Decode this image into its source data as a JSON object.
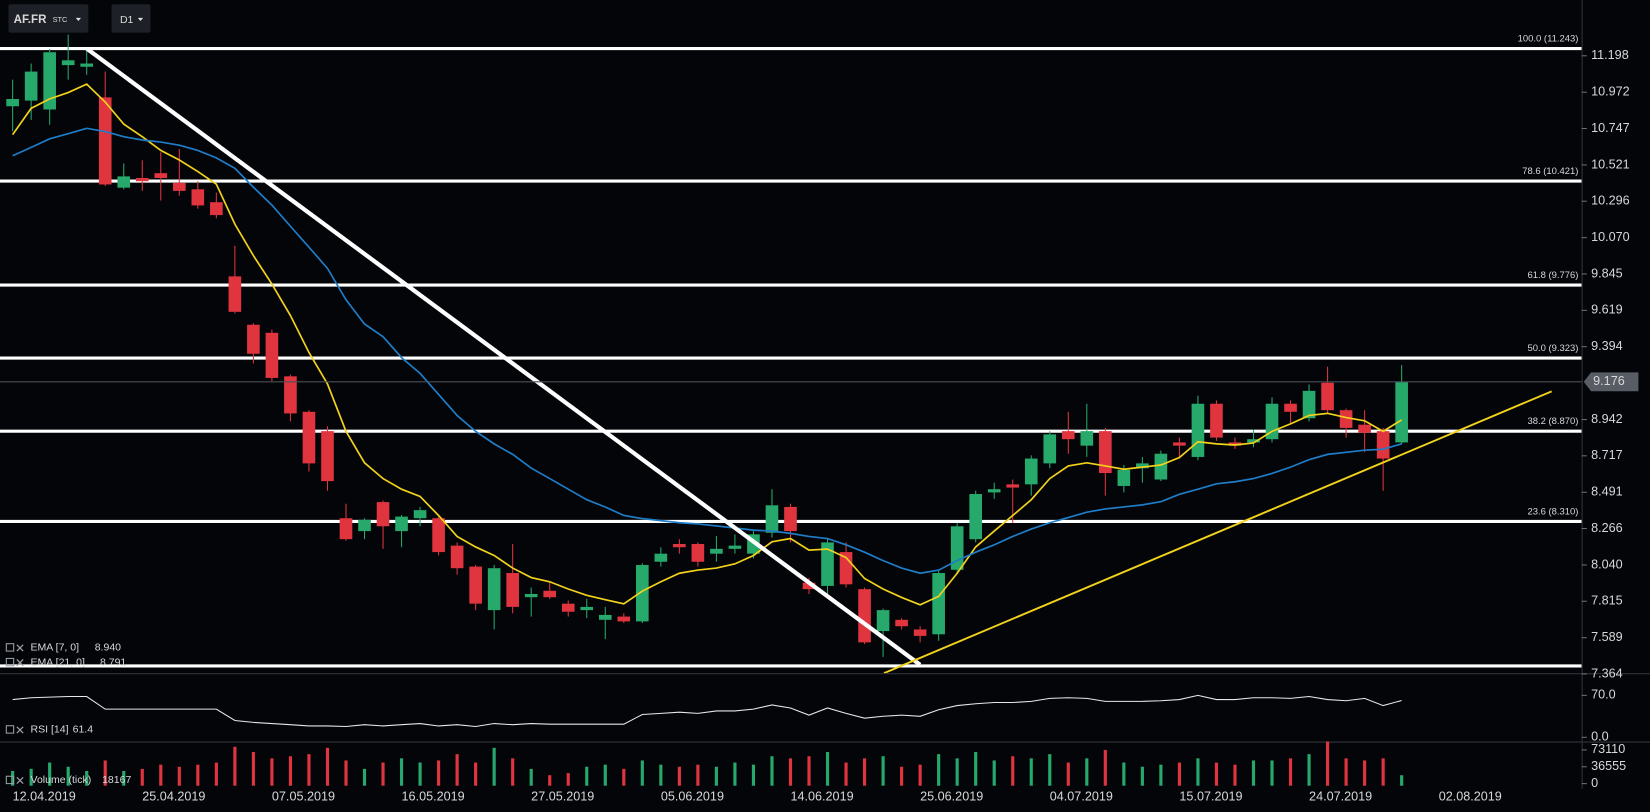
{
  "header": {
    "symbol": "AF.FR",
    "instrument_type": "STC",
    "timeframe": "D1"
  },
  "chart_data": {
    "type": "candlestick",
    "categories": [
      "12.04.2019",
      null,
      null,
      null,
      null,
      null,
      null,
      "25.04.2019",
      null,
      null,
      null,
      null,
      null,
      null,
      "07.05.2019",
      null,
      null,
      null,
      null,
      null,
      null,
      "16.05.2019",
      null,
      null,
      null,
      null,
      null,
      null,
      "27.05.2019",
      null,
      null,
      null,
      null,
      null,
      null,
      "05.06.2019",
      null,
      null,
      null,
      null,
      null,
      null,
      "14.06.2019",
      null,
      null,
      null,
      null,
      null,
      null,
      "25.06.2019",
      null,
      null,
      null,
      null,
      null,
      null,
      "04.07.2019",
      null,
      null,
      null,
      null,
      null,
      null,
      "15.07.2019",
      null,
      null,
      null,
      null,
      null,
      null,
      "24.07.2019",
      null,
      null,
      null,
      null,
      null,
      null,
      "02.08.2019"
    ],
    "open": [
      10.885,
      10.92,
      10.865,
      11.14,
      11.13,
      10.94,
      10.38,
      10.44,
      10.47,
      10.41,
      10.37,
      10.29,
      9.83,
      9.53,
      9.48,
      9.21,
      8.99,
      8.87,
      8.33,
      8.25,
      8.43,
      8.25,
      8.33,
      8.33,
      8.16,
      8.03,
      7.76,
      7.99,
      7.84,
      7.88,
      7.8,
      7.76,
      7.7,
      7.72,
      7.69,
      8.06,
      8.17,
      8.17,
      8.11,
      8.14,
      8.11,
      8.24,
      8.4,
      7.93,
      7.91,
      8.12,
      7.89,
      7.63,
      7.7,
      7.64,
      7.61,
      8.01,
      8.2,
      8.49,
      8.54,
      8.54,
      8.67,
      8.87,
      8.78,
      8.87,
      8.53,
      8.64,
      8.57,
      8.8,
      8.71,
      9.04,
      8.8,
      8.8,
      8.82,
      9.04,
      8.95,
      9.17,
      9.0,
      8.91,
      8.87,
      8.8,
      null,
      null
    ],
    "high": [
      11.05,
      11.15,
      11.24,
      11.33,
      11.24,
      11.1,
      10.53,
      10.55,
      10.6,
      10.62,
      10.42,
      10.35,
      10.02,
      9.54,
      9.5,
      9.22,
      9.0,
      8.9,
      8.42,
      8.33,
      8.44,
      8.35,
      8.4,
      8.34,
      8.18,
      8.04,
      8.04,
      8.17,
      7.9,
      7.93,
      7.82,
      7.83,
      7.78,
      7.74,
      8.05,
      8.15,
      8.2,
      8.18,
      8.22,
      8.23,
      8.26,
      8.51,
      8.42,
      7.96,
      8.2,
      8.18,
      7.9,
      7.77,
      7.71,
      7.66,
      8.01,
      8.3,
      8.5,
      8.55,
      8.57,
      8.72,
      8.87,
      8.99,
      9.04,
      8.89,
      8.66,
      8.71,
      8.75,
      8.83,
      9.09,
      9.06,
      8.83,
      8.88,
      9.08,
      9.06,
      9.16,
      9.27,
      9.01,
      9.0,
      8.89,
      9.28,
      null,
      null
    ],
    "low": [
      10.73,
      10.8,
      10.77,
      11.05,
      11.08,
      10.39,
      10.37,
      10.36,
      10.3,
      10.33,
      10.25,
      10.19,
      9.6,
      9.29,
      9.18,
      8.93,
      8.62,
      8.5,
      8.19,
      8.2,
      8.14,
      8.15,
      8.28,
      8.1,
      7.98,
      7.76,
      7.64,
      7.74,
      7.72,
      7.83,
      7.72,
      7.71,
      7.58,
      7.68,
      7.68,
      8.03,
      8.11,
      8.03,
      8.06,
      8.11,
      8.08,
      8.21,
      8.18,
      7.86,
      7.86,
      7.9,
      7.55,
      7.47,
      7.64,
      7.56,
      7.57,
      7.99,
      8.18,
      8.45,
      8.3,
      8.47,
      8.64,
      8.73,
      8.71,
      8.47,
      8.49,
      8.55,
      8.56,
      8.7,
      8.69,
      8.81,
      8.76,
      8.77,
      8.8,
      8.92,
      8.93,
      8.98,
      8.83,
      8.74,
      8.5,
      8.79,
      null,
      null
    ],
    "close": [
      10.93,
      11.1,
      11.22,
      11.17,
      11.15,
      10.4,
      10.45,
      10.42,
      10.44,
      10.36,
      10.27,
      10.21,
      9.61,
      9.35,
      9.2,
      8.98,
      8.67,
      8.56,
      8.2,
      8.32,
      8.28,
      8.34,
      8.38,
      8.12,
      8.02,
      7.8,
      8.02,
      7.78,
      7.86,
      7.84,
      7.75,
      7.78,
      7.73,
      7.69,
      8.04,
      8.11,
      8.15,
      8.06,
      8.14,
      8.16,
      8.23,
      8.41,
      8.25,
      7.89,
      8.18,
      7.92,
      7.56,
      7.76,
      7.66,
      7.6,
      7.99,
      8.28,
      8.48,
      8.51,
      8.52,
      8.7,
      8.85,
      8.82,
      8.87,
      8.61,
      8.63,
      8.67,
      8.73,
      8.78,
      9.04,
      8.83,
      8.78,
      8.82,
      9.04,
      8.99,
      9.12,
      9.0,
      8.89,
      8.86,
      8.7,
      9.176,
      null,
      null
    ],
    "up_color": "#26a96b",
    "down_color": "#e0343f",
    "ylim": [
      7.369,
      11.544
    ],
    "yticks": [
      11.198,
      10.972,
      10.747,
      10.521,
      10.296,
      {
        "value": 10.07,
        "label": "10.070"
      },
      9.845,
      9.619,
      9.394,
      8.942,
      8.717,
      8.491,
      8.266,
      {
        "value": 8.04,
        "label": "8.040"
      },
      7.815,
      7.589,
      7.364
    ],
    "series": [
      {
        "name": "EMA [7, 0]",
        "legend_value": "8.940",
        "color": "#f2d21b",
        "values": [
          10.709,
          10.872,
          10.931,
          10.97,
          11.022,
          10.911,
          10.774,
          10.696,
          10.611,
          10.552,
          10.48,
          10.402,
          10.154,
          9.959,
          9.782,
          9.587,
          9.358,
          9.163,
          8.869,
          8.674,
          8.576,
          8.51,
          8.465,
          8.347,
          8.217,
          8.152,
          8.099,
          8.021,
          7.962,
          7.936,
          7.891,
          7.852,
          7.825,
          7.799,
          7.878,
          7.936,
          7.989,
          8.008,
          8.021,
          8.047,
          8.099,
          8.184,
          8.204,
          8.132,
          8.139,
          8.086,
          7.956,
          7.891,
          7.839,
          7.793,
          7.845,
          7.989,
          8.152,
          8.25,
          8.347,
          8.445,
          8.576,
          8.654,
          8.674,
          8.654,
          8.634,
          8.647,
          8.66,
          8.706,
          8.804,
          8.791,
          8.784,
          8.797,
          8.869,
          8.915,
          8.967,
          8.98,
          8.954,
          8.934,
          8.869,
          8.94,
          null,
          null
        ]
      },
      {
        "name": "EMA [21, 0]",
        "legend_value": "8.791",
        "color": "#1f7dc8",
        "values": [
          10.578,
          10.63,
          10.683,
          10.715,
          10.748,
          10.728,
          10.696,
          10.676,
          10.663,
          10.644,
          10.611,
          10.565,
          10.5,
          10.383,
          10.272,
          10.141,
          10.011,
          9.88,
          9.685,
          9.535,
          9.456,
          9.326,
          9.228,
          9.098,
          8.967,
          8.869,
          8.791,
          8.726,
          8.641,
          8.576,
          8.51,
          8.445,
          8.4,
          8.347,
          8.328,
          8.315,
          8.302,
          8.295,
          8.282,
          8.269,
          8.256,
          8.25,
          8.236,
          8.217,
          8.204,
          8.165,
          8.119,
          8.067,
          8.021,
          7.989,
          8.008,
          8.067,
          8.119,
          8.165,
          8.217,
          8.263,
          8.302,
          8.334,
          8.367,
          8.387,
          8.4,
          8.413,
          8.432,
          8.478,
          8.51,
          8.543,
          8.556,
          8.576,
          8.608,
          8.647,
          8.693,
          8.726,
          8.739,
          8.752,
          8.758,
          8.791,
          null,
          null
        ]
      }
    ],
    "fib_levels": [
      {
        "label": "100.0 (11.243)",
        "value": 11.243
      },
      {
        "label": "78.6 (10.421)",
        "value": 10.421
      },
      {
        "label": "61.8 (9.776)",
        "value": 9.776
      },
      {
        "label": "50.0 (9.323)",
        "value": 9.323
      },
      {
        "label": "38.2 (8.870)",
        "value": 8.87
      },
      {
        "label": "23.6 (8.310)",
        "value": 8.31
      },
      {
        "label": null,
        "value": 7.414
      }
    ],
    "trendlines": [
      {
        "color": "#ffffff",
        "points": [
          {
            "x": 4,
            "y": 11.243
          },
          {
            "x": 49,
            "y": 7.421
          }
        ]
      },
      {
        "color": "#f2d21b",
        "points": [
          {
            "x": 47.05,
            "y": 7.369
          },
          {
            "x": 83.1,
            "y": 9.117
          }
        ]
      }
    ],
    "indicators": [
      {
        "type": "line",
        "name": "RSI [14]",
        "color": "#e8e8e8",
        "ylim": [
          0,
          100
        ],
        "yticks": [
          {
            "value": 70,
            "label": "70.0"
          },
          {
            "value": 0,
            "label": "0.0"
          }
        ],
        "values": [
          63,
          66,
          67,
          68,
          68,
          47,
          47,
          47,
          47,
          47,
          47,
          47,
          28,
          25,
          23,
          21,
          19,
          19,
          18,
          21,
          19,
          21,
          23,
          19,
          21,
          18,
          23,
          21,
          23,
          22,
          22,
          22,
          22,
          22,
          38,
          40,
          42,
          40,
          44,
          44,
          47,
          54,
          49,
          37,
          49,
          40,
          32,
          35,
          37,
          35,
          46,
          53,
          56,
          58,
          58,
          60,
          65,
          66,
          65,
          60,
          60,
          60,
          61,
          63,
          70,
          63,
          63,
          66,
          66,
          65,
          68,
          63,
          61,
          65,
          53,
          61.4,
          null,
          null
        ]
      },
      {
        "type": "bar",
        "name": "Volume (tick)",
        "ylim": [
          0,
          95000
        ],
        "yticks": [
          73110,
          36555,
          0
        ],
        "values": [
          27420,
          31990,
          45700,
          36560,
          27420,
          50270,
          27420,
          31990,
          41130,
          36560,
          41130,
          45700,
          79975,
          68550,
          54840,
          59410,
          63980,
          77690,
          50270,
          31990,
          45700,
          54840,
          45700,
          50270,
          63980,
          45700,
          77690,
          54840,
          31990,
          18280,
          22850,
          36560,
          41130,
          31990,
          50270,
          41130,
          36560,
          41130,
          36560,
          45700,
          41130,
          59410,
          54840,
          59410,
          68550,
          45700,
          54840,
          59410,
          36560,
          41130,
          63980,
          54840,
          68550,
          50270,
          59410,
          54840,
          63980,
          45700,
          54840,
          73120,
          45700,
          36560,
          41130,
          45700,
          54840,
          45700,
          41130,
          50270,
          50270,
          54840,
          63980,
          91400,
          54840,
          50270,
          54840,
          18167,
          null,
          null
        ]
      }
    ]
  }
}
